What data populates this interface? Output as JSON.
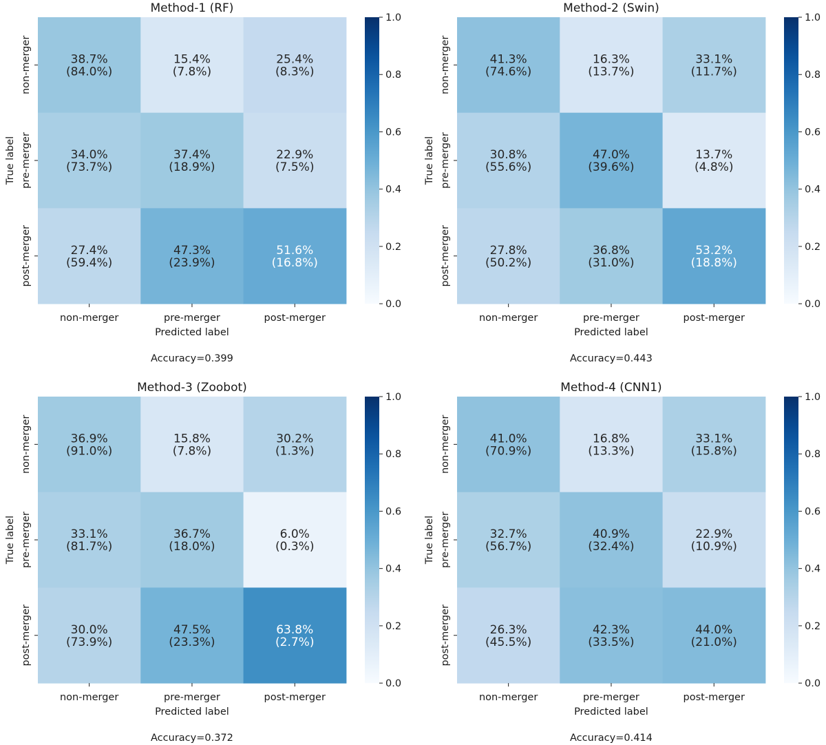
{
  "chart_data": [
    {
      "type": "heatmap",
      "title": "Method-1 (RF)",
      "xlabel": "Predicted label",
      "ylabel": "True label",
      "x_categories": [
        "non-merger",
        "pre-merger",
        "post-merger"
      ],
      "y_categories": [
        "non-merger",
        "pre-merger",
        "post-merger"
      ],
      "values": [
        [
          0.387,
          0.154,
          0.254
        ],
        [
          0.34,
          0.374,
          0.229
        ],
        [
          0.274,
          0.473,
          0.516
        ]
      ],
      "cell_labels": [
        [
          "38.7%",
          "15.4%",
          "25.4%"
        ],
        [
          "34.0%",
          "37.4%",
          "22.9%"
        ],
        [
          "27.4%",
          "47.3%",
          "51.6%"
        ]
      ],
      "cell_sublabels": [
        [
          "(84.0%)",
          "(7.8%)",
          "(8.3%)"
        ],
        [
          "(73.7%)",
          "(18.9%)",
          "(7.5%)"
        ],
        [
          "(59.4%)",
          "(23.9%)",
          "(16.8%)"
        ]
      ],
      "colorbar_range": [
        0.0,
        1.0
      ],
      "colorbar_ticks": [
        "0.0",
        "0.2",
        "0.4",
        "0.6",
        "0.8",
        "1.0"
      ],
      "annotation": "Accuracy=0.399"
    },
    {
      "type": "heatmap",
      "title": "Method-2 (Swin)",
      "xlabel": "Predicted label",
      "ylabel": "True label",
      "x_categories": [
        "non-merger",
        "pre-merger",
        "post-merger"
      ],
      "y_categories": [
        "non-merger",
        "pre-merger",
        "post-merger"
      ],
      "values": [
        [
          0.413,
          0.163,
          0.331
        ],
        [
          0.308,
          0.47,
          0.137
        ],
        [
          0.278,
          0.368,
          0.532
        ]
      ],
      "cell_labels": [
        [
          "41.3%",
          "16.3%",
          "33.1%"
        ],
        [
          "30.8%",
          "47.0%",
          "13.7%"
        ],
        [
          "27.8%",
          "36.8%",
          "53.2%"
        ]
      ],
      "cell_sublabels": [
        [
          "(74.6%)",
          "(13.7%)",
          "(11.7%)"
        ],
        [
          "(55.6%)",
          "(39.6%)",
          "(4.8%)"
        ],
        [
          "(50.2%)",
          "(31.0%)",
          "(18.8%)"
        ]
      ],
      "colorbar_range": [
        0.0,
        1.0
      ],
      "colorbar_ticks": [
        "0.0",
        "0.2",
        "0.4",
        "0.6",
        "0.8",
        "1.0"
      ],
      "annotation": "Accuracy=0.443"
    },
    {
      "type": "heatmap",
      "title": "Method-3 (Zoobot)",
      "xlabel": "Predicted label",
      "ylabel": "True label",
      "x_categories": [
        "non-merger",
        "pre-merger",
        "post-merger"
      ],
      "y_categories": [
        "non-merger",
        "pre-merger",
        "post-merger"
      ],
      "values": [
        [
          0.369,
          0.158,
          0.302
        ],
        [
          0.331,
          0.367,
          0.06
        ],
        [
          0.3,
          0.475,
          0.638
        ]
      ],
      "cell_labels": [
        [
          "36.9%",
          "15.8%",
          "30.2%"
        ],
        [
          "33.1%",
          "36.7%",
          "6.0%"
        ],
        [
          "30.0%",
          "47.5%",
          "63.8%"
        ]
      ],
      "cell_sublabels": [
        [
          "(91.0%)",
          "(7.8%)",
          "(1.3%)"
        ],
        [
          "(81.7%)",
          "(18.0%)",
          "(0.3%)"
        ],
        [
          "(73.9%)",
          "(23.3%)",
          "(2.7%)"
        ]
      ],
      "colorbar_range": [
        0.0,
        1.0
      ],
      "colorbar_ticks": [
        "0.0",
        "0.2",
        "0.4",
        "0.6",
        "0.8",
        "1.0"
      ],
      "annotation": "Accuracy=0.372"
    },
    {
      "type": "heatmap",
      "title": "Method-4 (CNN1)",
      "xlabel": "Predicted label",
      "ylabel": "True label",
      "x_categories": [
        "non-merger",
        "pre-merger",
        "post-merger"
      ],
      "y_categories": [
        "non-merger",
        "pre-merger",
        "post-merger"
      ],
      "values": [
        [
          0.41,
          0.168,
          0.331
        ],
        [
          0.327,
          0.409,
          0.229
        ],
        [
          0.263,
          0.423,
          0.44
        ]
      ],
      "cell_labels": [
        [
          "41.0%",
          "16.8%",
          "33.1%"
        ],
        [
          "32.7%",
          "40.9%",
          "22.9%"
        ],
        [
          "26.3%",
          "42.3%",
          "44.0%"
        ]
      ],
      "cell_sublabels": [
        [
          "(70.9%)",
          "(13.3%)",
          "(15.8%)"
        ],
        [
          "(56.7%)",
          "(32.4%)",
          "(10.9%)"
        ],
        [
          "(45.5%)",
          "(33.5%)",
          "(21.0%)"
        ]
      ],
      "colorbar_range": [
        0.0,
        1.0
      ],
      "colorbar_ticks": [
        "0.0",
        "0.2",
        "0.4",
        "0.6",
        "0.8",
        "1.0"
      ],
      "annotation": "Accuracy=0.414"
    }
  ]
}
